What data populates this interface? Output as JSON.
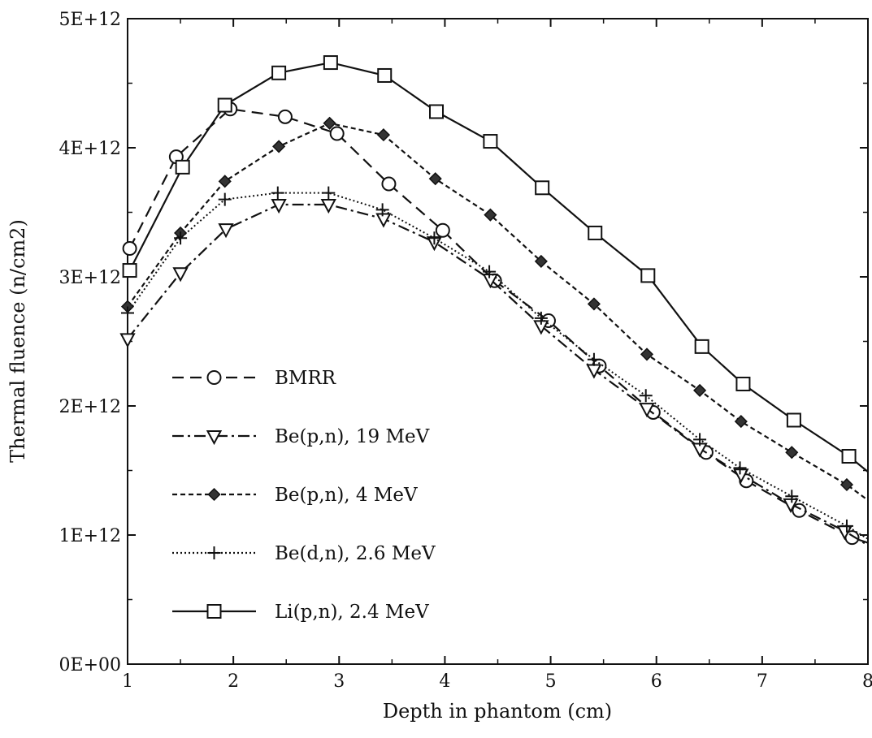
{
  "chart_data": {
    "type": "line",
    "xlabel": "Depth in phantom (cm)",
    "ylabel": "Thermal fluence (n/cm2)",
    "xlim": [
      1,
      8
    ],
    "ylim": [
      0,
      5000000000000.0
    ],
    "x_ticks": [
      {
        "value": 1,
        "label": "1"
      },
      {
        "value": 2,
        "label": "2"
      },
      {
        "value": 3,
        "label": "3"
      },
      {
        "value": 4,
        "label": "4"
      },
      {
        "value": 5,
        "label": "5"
      },
      {
        "value": 6,
        "label": "6"
      },
      {
        "value": 7,
        "label": "7"
      },
      {
        "value": 8,
        "label": "8"
      }
    ],
    "y_ticks": [
      {
        "value": 0,
        "label": "0E+00"
      },
      {
        "value": 1000000000000.0,
        "label": "1E+12"
      },
      {
        "value": 2000000000000.0,
        "label": "2E+12"
      },
      {
        "value": 3000000000000.0,
        "label": "3E+12"
      },
      {
        "value": 4000000000000.0,
        "label": "4E+12"
      },
      {
        "value": 5000000000000.0,
        "label": "5E+12"
      }
    ],
    "grid": false,
    "legend_position": "bottom-left",
    "series": [
      {
        "name": "BMRR",
        "line_style": "dashed",
        "marker": "circle-open",
        "x": [
          1.02,
          1.46,
          1.97,
          2.49,
          2.98,
          3.47,
          3.98,
          4.47,
          4.98,
          5.46,
          5.97,
          6.47,
          6.85,
          7.35,
          7.85
        ],
        "y": [
          3220000000000.0,
          3930000000000.0,
          4300000000000.0,
          4240000000000.0,
          4110000000000.0,
          3720000000000.0,
          3360000000000.0,
          2970000000000.0,
          2660000000000.0,
          2310000000000.0,
          1950000000000.0,
          1640000000000.0,
          1420000000000.0,
          1190000000000.0,
          980000000000.0
        ],
        "tail": [
          8.0,
          940000000000.0
        ]
      },
      {
        "name": "Be(p,n), 19 MeV",
        "line_style": "dash-dot",
        "marker": "triangle-down-open",
        "x": [
          1.0,
          1.5,
          1.93,
          2.43,
          2.9,
          3.42,
          3.9,
          4.43,
          4.91,
          5.41,
          5.91,
          6.41,
          6.8,
          7.27,
          7.78
        ],
        "y": [
          2520000000000.0,
          3030000000000.0,
          3370000000000.0,
          3560000000000.0,
          3560000000000.0,
          3450000000000.0,
          3270000000000.0,
          2980000000000.0,
          2620000000000.0,
          2280000000000.0,
          1980000000000.0,
          1670000000000.0,
          1470000000000.0,
          1240000000000.0,
          1030000000000.0
        ],
        "tail": [
          8.0,
          920000000000.0
        ]
      },
      {
        "name": "Be(p,n), 4 MeV",
        "line_style": "dotted-dash",
        "marker": "diamond-filled",
        "x": [
          1.0,
          1.5,
          1.92,
          2.43,
          2.91,
          3.42,
          3.91,
          4.43,
          4.91,
          5.41,
          5.91,
          6.41,
          6.8,
          7.28,
          7.8
        ],
        "y": [
          2770000000000.0,
          3340000000000.0,
          3740000000000.0,
          4010000000000.0,
          4190000000000.0,
          4100000000000.0,
          3760000000000.0,
          3480000000000.0,
          3120000000000.0,
          2790000000000.0,
          2400000000000.0,
          2120000000000.0,
          1880000000000.0,
          1640000000000.0,
          1390000000000.0
        ],
        "tail": [
          8.0,
          1270000000000.0
        ]
      },
      {
        "name": "Be(d,n), 2.6 MeV",
        "line_style": "dotted",
        "marker": "plus",
        "x": [
          1.0,
          1.5,
          1.92,
          2.42,
          2.9,
          3.41,
          3.9,
          4.42,
          4.91,
          5.41,
          5.9,
          6.41,
          6.79,
          7.28,
          7.8
        ],
        "y": [
          2720000000000.0,
          3300000000000.0,
          3600000000000.0,
          3650000000000.0,
          3650000000000.0,
          3520000000000.0,
          3300000000000.0,
          3040000000000.0,
          2680000000000.0,
          2360000000000.0,
          2080000000000.0,
          1740000000000.0,
          1520000000000.0,
          1300000000000.0,
          1070000000000.0
        ],
        "tail": [
          8.0,
          970000000000.0
        ]
      },
      {
        "name": "Li(p,n), 2.4 MeV",
        "line_style": "solid",
        "marker": "square-open",
        "x": [
          1.02,
          1.52,
          1.92,
          2.43,
          2.92,
          3.43,
          3.92,
          4.43,
          4.92,
          5.42,
          5.92,
          6.43,
          6.82,
          7.3,
          7.82
        ],
        "y": [
          3050000000000.0,
          3850000000000.0,
          4330000000000.0,
          4580000000000.0,
          4660000000000.0,
          4560000000000.0,
          4280000000000.0,
          4050000000000.0,
          3690000000000.0,
          3340000000000.0,
          3010000000000.0,
          2460000000000.0,
          2170000000000.0,
          1890000000000.0,
          1610000000000.0
        ],
        "tail": [
          8.0,
          1490000000000.0
        ]
      }
    ]
  }
}
